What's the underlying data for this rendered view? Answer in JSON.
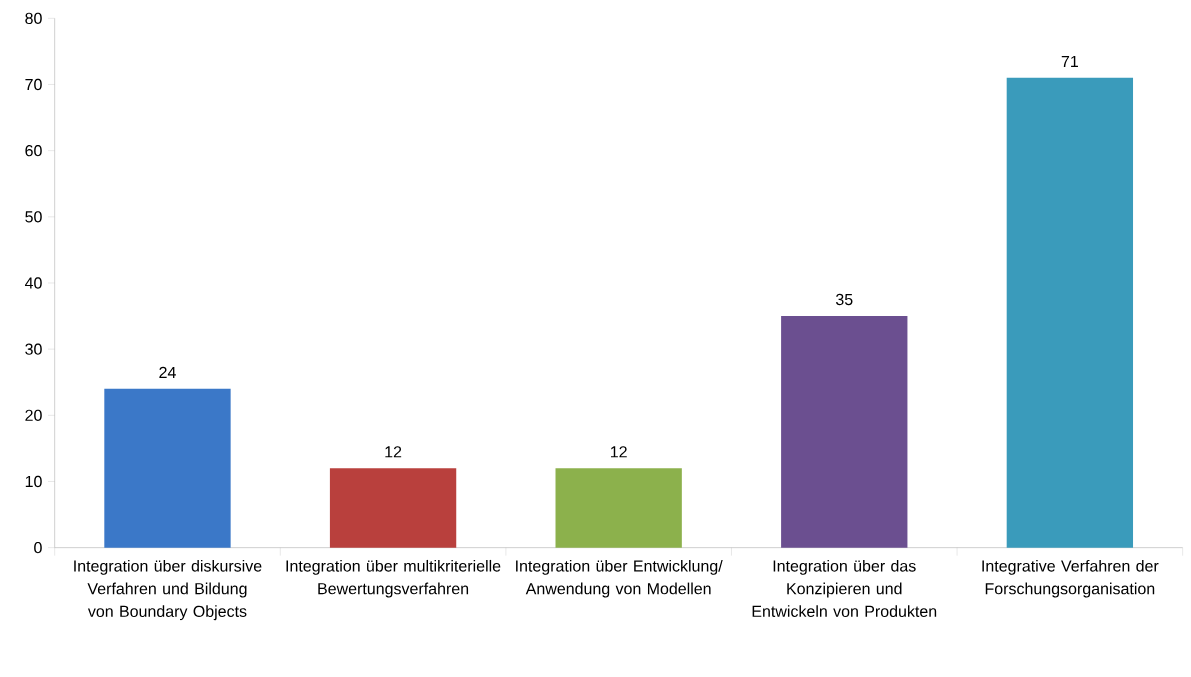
{
  "chart_data": {
    "type": "bar",
    "categories": [
      "Integration über diskursive Verfahren und Bildung von Boundary Objects",
      "Integration über multikriterielle Bewertungsverfahren",
      "Integration über Entwicklung/ Anwendung von Modellen",
      "Integration über das Konzipieren und Entwickeln von Produkten",
      "Integrative Verfahren der Forschungsorganisation"
    ],
    "values": [
      24,
      12,
      12,
      35,
      71
    ],
    "colors": [
      "#3b78c8",
      "#b9403d",
      "#8cb14c",
      "#6b4f90",
      "#3a9bbb"
    ],
    "ylim": [
      0,
      80
    ],
    "yticks": [
      0,
      10,
      20,
      30,
      40,
      50,
      60,
      70,
      80
    ],
    "data_labels": true
  }
}
